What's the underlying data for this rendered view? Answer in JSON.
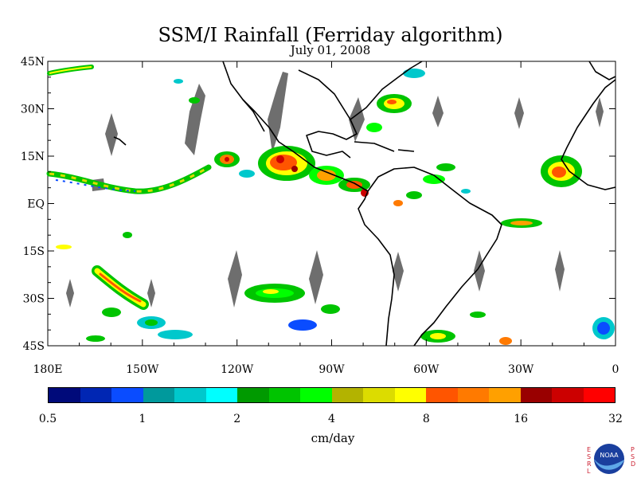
{
  "title": "SSM/I Rainfall (Ferriday algorithm)",
  "subtitle": "July 01, 2008",
  "axes": {
    "lat_labels": [
      "45N",
      "30N",
      "15N",
      "EQ",
      "15S",
      "30S",
      "45S"
    ],
    "lat_values": [
      45,
      30,
      15,
      0,
      -15,
      -30,
      -45
    ],
    "lon_labels": [
      "180E",
      "150W",
      "120W",
      "90W",
      "60W",
      "30W",
      "0"
    ],
    "lon_values": [
      -180,
      -150,
      -120,
      -90,
      -60,
      -30,
      0
    ],
    "lon_range": [
      -180,
      0
    ],
    "lat_range": [
      -45,
      45
    ]
  },
  "colorbar": {
    "colors": [
      "#000a7a",
      "#0026b3",
      "#0a4cff",
      "#00999c",
      "#00c8cc",
      "#00ffff",
      "#009a00",
      "#00c400",
      "#00ff00",
      "#b3b300",
      "#dcdc00",
      "#ffff00",
      "#ff5500",
      "#ff7a00",
      "#ffa000",
      "#990000",
      "#cc0000",
      "#ff0000"
    ],
    "tick_labels": [
      "0.5",
      "1",
      "2",
      "4",
      "8",
      "16",
      "32"
    ],
    "unit": "cm/day"
  },
  "logo": {
    "text": "NOAA",
    "left_letters": [
      "E",
      "S",
      "R",
      "L"
    ],
    "right_letters": [
      "P",
      "S",
      "D"
    ]
  }
}
